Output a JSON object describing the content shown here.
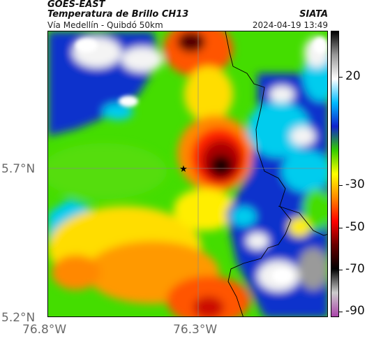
{
  "header": {
    "satellite": "GOES-EAST",
    "product": "Temperatura de Brillo CH13",
    "route": "Vía Medellín - Quibdó 50km",
    "organization": "SIATA",
    "timestamp": "2024-04-19 13:49"
  },
  "map": {
    "lat_labels": [
      "5.7°N",
      "5.2°N"
    ],
    "lon_labels": [
      "76.8°W",
      "76.3°W"
    ],
    "marker_icon": "star-icon",
    "colors": {
      "coldest": "#1a0000",
      "deep_red": "#cc1100",
      "red": "#ff3300",
      "orange": "#ff8800",
      "yellow": "#ffee00",
      "green": "#44dd00",
      "cyan": "#00ccee",
      "blue": "#1133cc",
      "white": "#f4f4f4",
      "grey": "#9a9a9a"
    }
  },
  "colorbar": {
    "ticks": [
      "20",
      "-30",
      "-50",
      "-70",
      "-90"
    ],
    "gradient": [
      "#000000",
      "#999999",
      "#ffffff",
      "#00bbff",
      "#1122cc",
      "#33cc00",
      "#ffff00",
      "#ff8800",
      "#ff0000",
      "#660000",
      "#000000",
      "#cccccc",
      "#aa44aa"
    ]
  }
}
